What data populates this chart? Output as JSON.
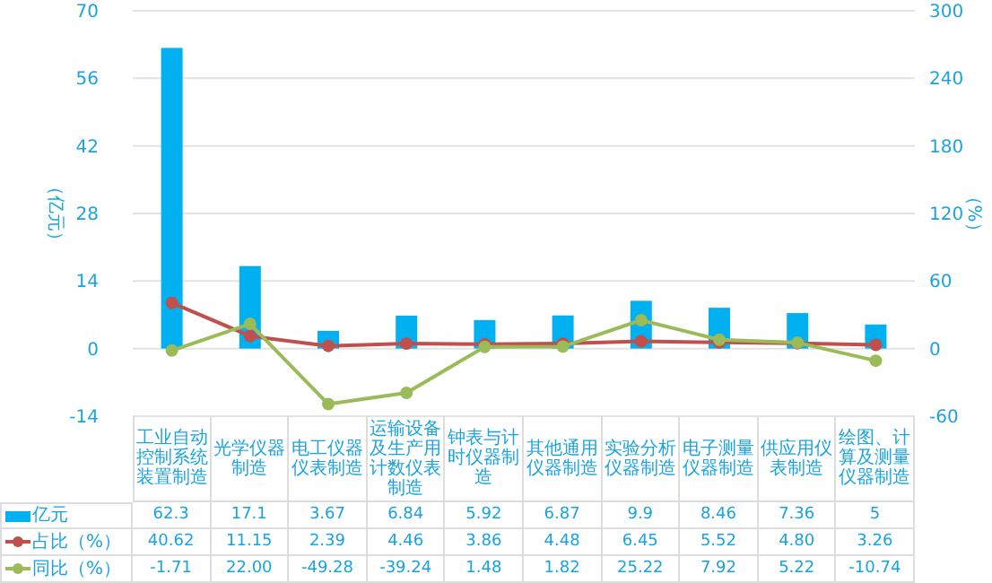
{
  "chart_data": {
    "type": "bar",
    "ylabel": "（亿元）",
    "y2label": "（%）",
    "categories": [
      "工业自动控制系统装置制造",
      "光学仪器制造",
      "电工仪器仪表制造",
      "运输设备及生产用计数仪表制造",
      "钟表与计时仪器制造",
      "其他通用仪器制造",
      "实验分析仪器制造",
      "电子测量仪器制造",
      "供应用仪表制造",
      "绘图、计算及测量仪器制造"
    ],
    "series": [
      {
        "name": "亿元",
        "color": "#00b0f0",
        "values": [
          62.3,
          17.1,
          3.67,
          6.84,
          5.92,
          6.87,
          9.9,
          8.46,
          7.36,
          5
        ],
        "value_labels": [
          "62.3",
          "17.1",
          "3.67",
          "6.84",
          "5.92",
          "6.87",
          "9.9",
          "8.46",
          "7.36",
          "5"
        ]
      },
      {
        "name": "占比（%）",
        "type": "line",
        "axis": "y2",
        "color": "#c0504d",
        "values": [
          40.62,
          11.15,
          2.39,
          4.46,
          3.86,
          4.48,
          6.45,
          5.52,
          4.8,
          3.26
        ],
        "value_labels": [
          "40.62",
          "11.15",
          "2.39",
          "4.46",
          "3.86",
          "4.48",
          "6.45",
          "5.52",
          "4.80",
          "3.26"
        ]
      },
      {
        "name": "同比（%）",
        "type": "line",
        "axis": "y2",
        "color": "#9bbb59",
        "values": [
          -1.71,
          22.0,
          -49.28,
          -39.24,
          1.48,
          1.82,
          25.22,
          7.92,
          5.22,
          -10.74
        ],
        "value_labels": [
          "-1.71",
          "22.00",
          "-49.28",
          "-39.24",
          "1.48",
          "1.82",
          "25.22",
          "7.92",
          "5.22",
          "-10.74"
        ]
      }
    ],
    "ylim": [
      -14,
      70
    ],
    "yticks": [
      -14,
      0,
      14,
      28,
      42,
      56,
      70
    ],
    "y2lim": [
      -60,
      300
    ],
    "y2ticks": [
      -60,
      0,
      60,
      120,
      180,
      240,
      300
    ],
    "grid": "y",
    "marker": "circle",
    "legend": "bottom"
  }
}
